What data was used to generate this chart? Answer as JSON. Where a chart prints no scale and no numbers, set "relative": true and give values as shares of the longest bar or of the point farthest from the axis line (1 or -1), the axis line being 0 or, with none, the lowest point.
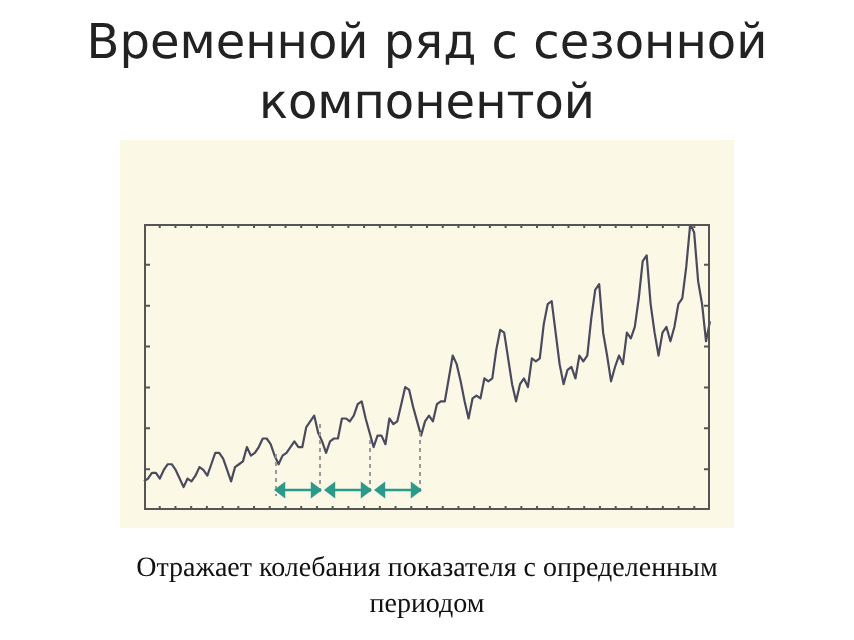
{
  "chart_data": {
    "type": "line",
    "title": "Временной ряд с сезонной компонентой",
    "annotations": [
      "Отражает колебания показателя с определенным периодом"
    ],
    "relative": true,
    "legend": false,
    "marker": "none",
    "categories": [
      null,
      null,
      null,
      null,
      null,
      null,
      null,
      null,
      null,
      null,
      null,
      null,
      null,
      null,
      null,
      null,
      null,
      null,
      null,
      null,
      null,
      null,
      null,
      null,
      null,
      null,
      null,
      null,
      null,
      null,
      null,
      null,
      null,
      null,
      null,
      null,
      null,
      null,
      null,
      null,
      null,
      null,
      null,
      null,
      null,
      null,
      null,
      null,
      null,
      null,
      null,
      null,
      null,
      null,
      null,
      null,
      null,
      null,
      null,
      null,
      null,
      null,
      null,
      null,
      null,
      null,
      null,
      null,
      null,
      null,
      null,
      null,
      null,
      null,
      null,
      null,
      null,
      null,
      null,
      null,
      null,
      null,
      null,
      null,
      null,
      null,
      null,
      null,
      null,
      null,
      null,
      null,
      null,
      null,
      null,
      null,
      null,
      null,
      null,
      null,
      null,
      null,
      null,
      null,
      null,
      null,
      null,
      null,
      null,
      null,
      null,
      null,
      null,
      null,
      null,
      null,
      null,
      null,
      null,
      null,
      null,
      null,
      null,
      null,
      null,
      null,
      null,
      null,
      null,
      null,
      null,
      null,
      null,
      null,
      null,
      null,
      null,
      null,
      null,
      null,
      null,
      null,
      null,
      null
    ],
    "series": [
      {
        "color": "#4a4a5e",
        "values": [
          0.1,
          0.11,
          0.13,
          0.13,
          0.11,
          0.14,
          0.16,
          0.16,
          0.14,
          0.11,
          0.08,
          0.11,
          0.1,
          0.12,
          0.15,
          0.14,
          0.12,
          0.16,
          0.2,
          0.2,
          0.18,
          0.14,
          0.1,
          0.15,
          0.16,
          0.17,
          0.22,
          0.19,
          0.2,
          0.22,
          0.25,
          0.25,
          0.23,
          0.19,
          0.16,
          0.19,
          0.2,
          0.22,
          0.24,
          0.22,
          0.22,
          0.29,
          0.31,
          0.33,
          0.27,
          0.24,
          0.2,
          0.24,
          0.25,
          0.25,
          0.32,
          0.32,
          0.31,
          0.33,
          0.37,
          0.38,
          0.32,
          0.27,
          0.22,
          0.26,
          0.26,
          0.23,
          0.32,
          0.3,
          0.31,
          0.37,
          0.43,
          0.42,
          0.36,
          0.31,
          0.26,
          0.31,
          0.33,
          0.31,
          0.37,
          0.38,
          0.38,
          0.46,
          0.54,
          0.51,
          0.45,
          0.38,
          0.32,
          0.39,
          0.4,
          0.39,
          0.46,
          0.45,
          0.46,
          0.56,
          0.63,
          0.62,
          0.53,
          0.44,
          0.38,
          0.44,
          0.46,
          0.43,
          0.53,
          0.52,
          0.53,
          0.65,
          0.72,
          0.73,
          0.62,
          0.51,
          0.44,
          0.49,
          0.5,
          0.46,
          0.54,
          0.52,
          0.54,
          0.67,
          0.77,
          0.79,
          0.62,
          0.54,
          0.45,
          0.5,
          0.54,
          0.51,
          0.62,
          0.6,
          0.64,
          0.74,
          0.87,
          0.89,
          0.72,
          0.62,
          0.54,
          0.62,
          0.64,
          0.59,
          0.64,
          0.72,
          0.74,
          0.85,
          1,
          0.97,
          0.8,
          0.72,
          0.59,
          0.66
        ]
      }
    ]
  }
}
